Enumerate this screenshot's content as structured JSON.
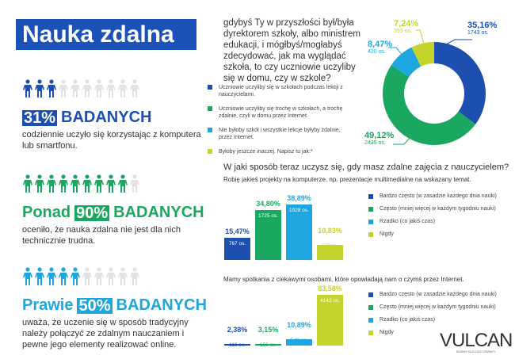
{
  "colors": {
    "dark_blue": "#1c4fb0",
    "green": "#1aa860",
    "light_blue": "#1ea6e0",
    "lime": "#c4d42c",
    "grey": "#e2e2e2"
  },
  "title": "Nauka zdalna",
  "stats": [
    {
      "prefix": "",
      "percent": "31%",
      "suffix": "BADANYCH",
      "desc": "codziennie uczyło się korzystając z komputera lub smartfonu.",
      "filled": 3,
      "color": "#1c4fb0"
    },
    {
      "prefix": "Ponad",
      "percent": "90%",
      "suffix": "BADANYCH",
      "desc": "oceniło, że nauka zdalna nie jest dla nich technicznie trudna.",
      "filled": 9,
      "color": "#1aa860"
    },
    {
      "prefix": "Prawie",
      "percent": "50%",
      "suffix": "BADANYCH",
      "desc": "uważa, że uczenie się w sposób tradycyjny należy połączyć ze zdalnym nauczaniem i pewne jego elementy realizować online.",
      "filled": 5,
      "color": "#1ea6e0"
    }
  ],
  "chart_data": [
    {
      "type": "pie",
      "title": "gdybyś Ty w przyszłości był/była dyrektorem szkoły, albo ministrem edukacji, i mógłbyś/mogłabyś zdecydować, jak ma wyglądać szkoła, to czy uczniowie uczyliby się w domu, czy w szkole?",
      "donut": true,
      "slices": [
        {
          "label": "Uczniowie uczyliby się w szkołach podczas lekcji z nauczycielami.",
          "value": 35.16,
          "pct_label": "35,16%",
          "count": "1743 os.",
          "color": "#1c4fb0"
        },
        {
          "label": "Uczniowie uczyliby się trochę w szkołach, a trochę zdalnie, czyli w domu przez Internet.",
          "value": 49.12,
          "pct_label": "49,12%",
          "count": "2435 os.",
          "color": "#1aa860"
        },
        {
          "label": "Nie byłoby szkół i wszystkie lekcje byłyby zdalnie, przez Internet.",
          "value": 8.47,
          "pct_label": "8,47%",
          "count": "420 os.",
          "color": "#1ea6e0"
        },
        {
          "label": "Byłoby jeszcze inaczej. Napisz tu jak:*",
          "value": 7.24,
          "pct_label": "7,24%",
          "count": "359 os.",
          "color": "#c4d42c"
        }
      ]
    },
    {
      "type": "bar",
      "title": "W jaki sposób teraz uczysz się, gdy masz zdalne zajęcia z nauczycielem?",
      "subtitle": "Robię jakieś projekty na komputerze, np. prezentacje multimedialne na wskazany temat.",
      "categories": [
        "Bardzo często (w zasadzie każdego dnia nauki)",
        "Często (mniej więcej w każdym tygodniu nauki)",
        "Rzadko (co jakiś czas)",
        "Nigdy"
      ],
      "values": [
        15.47,
        34.8,
        38.89,
        10.83
      ],
      "pct_labels": [
        "15,47%",
        "34,80%",
        "38,89%",
        "10,83%"
      ],
      "counts": [
        "767 os.",
        "1725 os.",
        "1928 os.",
        "537 os."
      ],
      "colors": [
        "#1c4fb0",
        "#1aa860",
        "#1ea6e0",
        "#c4d42c"
      ]
    },
    {
      "type": "bar",
      "title": "Mamy spotkania z ciekawymi osobami, które opowiadają nam o czymś przez Internet.",
      "categories": [
        "Bardzo często (w zasadzie każdego dnia nauki)",
        "Często (mniej więcej w każdym tygodniu nauki)",
        "Rzadko (co jakiś czas)",
        "Nigdy"
      ],
      "values": [
        2.38,
        3.15,
        10.89,
        83.58
      ],
      "pct_labels": [
        "2,38%",
        "3,15%",
        "10,89%",
        "83,58%"
      ],
      "counts": [
        "118 os.",
        "156 os.",
        "540 os.",
        "4143 os."
      ],
      "colors": [
        "#1c4fb0",
        "#1aa860",
        "#1ea6e0",
        "#c4d42c"
      ]
    }
  ],
  "logo": {
    "text": "VULCAN",
    "tagline": "NAJEMY DLA LUDZI OŚWIATY"
  }
}
